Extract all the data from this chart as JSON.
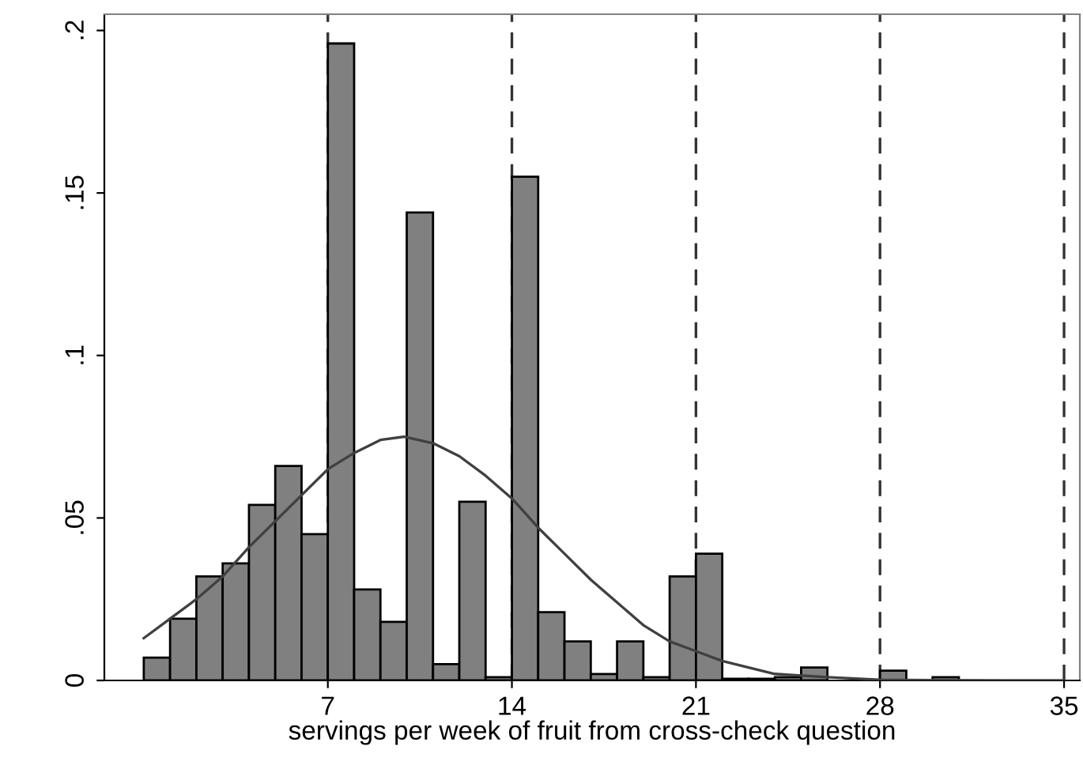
{
  "chart_data": {
    "type": "histogram",
    "xlabel": "servings per week of fruit from cross-check question",
    "bins": [
      0,
      1,
      2,
      3,
      4,
      5,
      6,
      7,
      8,
      9,
      10,
      11,
      12,
      13,
      14,
      15,
      16,
      17,
      18,
      19,
      20,
      21,
      22,
      23,
      24,
      25,
      26,
      27,
      28,
      29,
      30,
      31,
      32,
      33,
      34,
      35,
      36
    ],
    "values": [
      0.007,
      0.019,
      0.032,
      0.036,
      0.054,
      0.066,
      0.045,
      0.196,
      0.028,
      0.018,
      0.144,
      0.005,
      0.055,
      0.001,
      0.155,
      0.021,
      0.012,
      0.002,
      0.012,
      0.001,
      0.032,
      0.039,
      0.0005,
      0.0005,
      0.001,
      0.004,
      null,
      0,
      0.003,
      0,
      0.001,
      0,
      0,
      0,
      0,
      0
    ],
    "color": "#808080",
    "series": [
      {
        "type": "line",
        "color": "#404040",
        "x": [
          0,
          1,
          2,
          3,
          4,
          5,
          6,
          7,
          8,
          9,
          9.9,
          11,
          12,
          13,
          14,
          15,
          16,
          17,
          18,
          19,
          20,
          21,
          22,
          23,
          24,
          26,
          28,
          30,
          35
        ],
        "values": [
          0.013,
          0.019,
          0.025,
          0.032,
          0.041,
          0.049,
          0.057,
          0.065,
          0.07,
          0.074,
          0.075,
          0.073,
          0.069,
          0.063,
          0.056,
          0.047,
          0.039,
          0.031,
          0.024,
          0.017,
          0.012,
          0.009,
          0.006,
          0.004,
          0.002,
          0.001,
          0.0002,
          0.0001,
          0
        ]
      }
    ],
    "xlim": [
      -1.5,
      35.6
    ],
    "ylim": [
      0,
      0.205
    ],
    "xticks": [
      7,
      14,
      21,
      28,
      35
    ],
    "yticks": [
      {
        "value": 0,
        "label": "0"
      },
      {
        "value": 0.05,
        "label": ".05"
      },
      {
        "value": 0.1,
        "label": ".1"
      },
      {
        "value": 0.15,
        "label": ".15"
      },
      {
        "value": 0.2,
        "label": ".2"
      }
    ],
    "ref_lines": [
      {
        "axis": "x",
        "value": 7,
        "line_style": "dashed"
      },
      {
        "axis": "x",
        "value": 14,
        "line_style": "dashed"
      },
      {
        "axis": "x",
        "value": 21,
        "line_style": "dashed"
      },
      {
        "axis": "x",
        "value": 28,
        "line_style": "dashed"
      },
      {
        "axis": "x",
        "value": 35,
        "line_style": "dashed"
      }
    ],
    "grid": false,
    "legend": false
  }
}
